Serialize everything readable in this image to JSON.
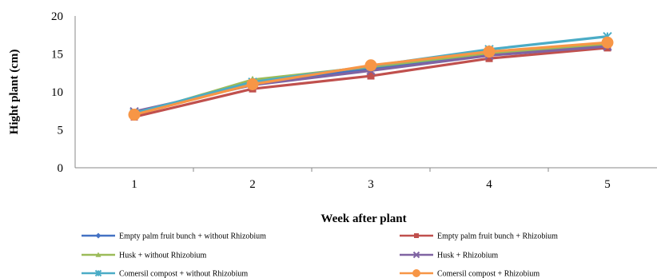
{
  "chart_data": {
    "type": "line",
    "title": "",
    "xlabel": "Week after plant",
    "ylabel": "Hight plant  (cm)",
    "categories": [
      "1",
      "2",
      "3",
      "4",
      "5"
    ],
    "ylim": [
      0,
      20
    ],
    "yticks": [
      "0",
      "5",
      "10",
      "15",
      "20"
    ],
    "grid": false,
    "legend_position": "bottom",
    "series": [
      {
        "name": "Empty palm fruit bunch + without Rhizobium",
        "values": [
          7.0,
          11.2,
          13.0,
          15.0,
          16.2
        ],
        "color": "#4472C4",
        "marker": "diamond"
      },
      {
        "name": "Empty palm fruit bunch + Rhizobium",
        "values": [
          6.7,
          10.4,
          12.1,
          14.4,
          15.8
        ],
        "color": "#C0504D",
        "marker": "square"
      },
      {
        "name": "Husk + without Rhizobium",
        "values": [
          7.0,
          11.6,
          13.3,
          15.1,
          16.3
        ],
        "color": "#9BBB59",
        "marker": "triangle"
      },
      {
        "name": "Husk + Rhizobium",
        "values": [
          7.4,
          10.9,
          12.8,
          14.8,
          16.0
        ],
        "color": "#8064A2",
        "marker": "x"
      },
      {
        "name": "Comersil compost + without Rhizobium",
        "values": [
          7.2,
          11.3,
          13.4,
          15.6,
          17.3
        ],
        "color": "#4BACC6",
        "marker": "star"
      },
      {
        "name": "Comersil compost +  Rhizobium",
        "values": [
          7.0,
          11.0,
          13.5,
          15.3,
          16.5
        ],
        "color": "#F79646",
        "marker": "circle"
      }
    ]
  }
}
